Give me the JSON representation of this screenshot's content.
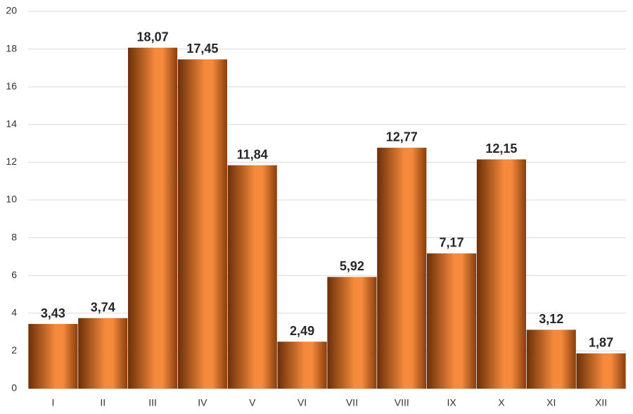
{
  "chart_data": {
    "type": "bar",
    "categories": [
      "I",
      "II",
      "III",
      "IV",
      "V",
      "VI",
      "VII",
      "VIII",
      "IX",
      "X",
      "XI",
      "XII"
    ],
    "values": [
      3.43,
      3.74,
      18.07,
      17.45,
      11.84,
      2.49,
      5.92,
      12.77,
      7.17,
      12.15,
      3.12,
      1.87
    ],
    "value_labels": [
      "3,43",
      "3,74",
      "18,07",
      "17,45",
      "11,84",
      "2,49",
      "5,92",
      "12,77",
      "7,17",
      "12,15",
      "3,12",
      "1,87"
    ],
    "color": "#f58a3c",
    "ylim": [
      0,
      20
    ],
    "yticks": [
      0,
      2,
      4,
      6,
      8,
      10,
      12,
      14,
      16,
      18,
      20
    ],
    "grid": true
  }
}
